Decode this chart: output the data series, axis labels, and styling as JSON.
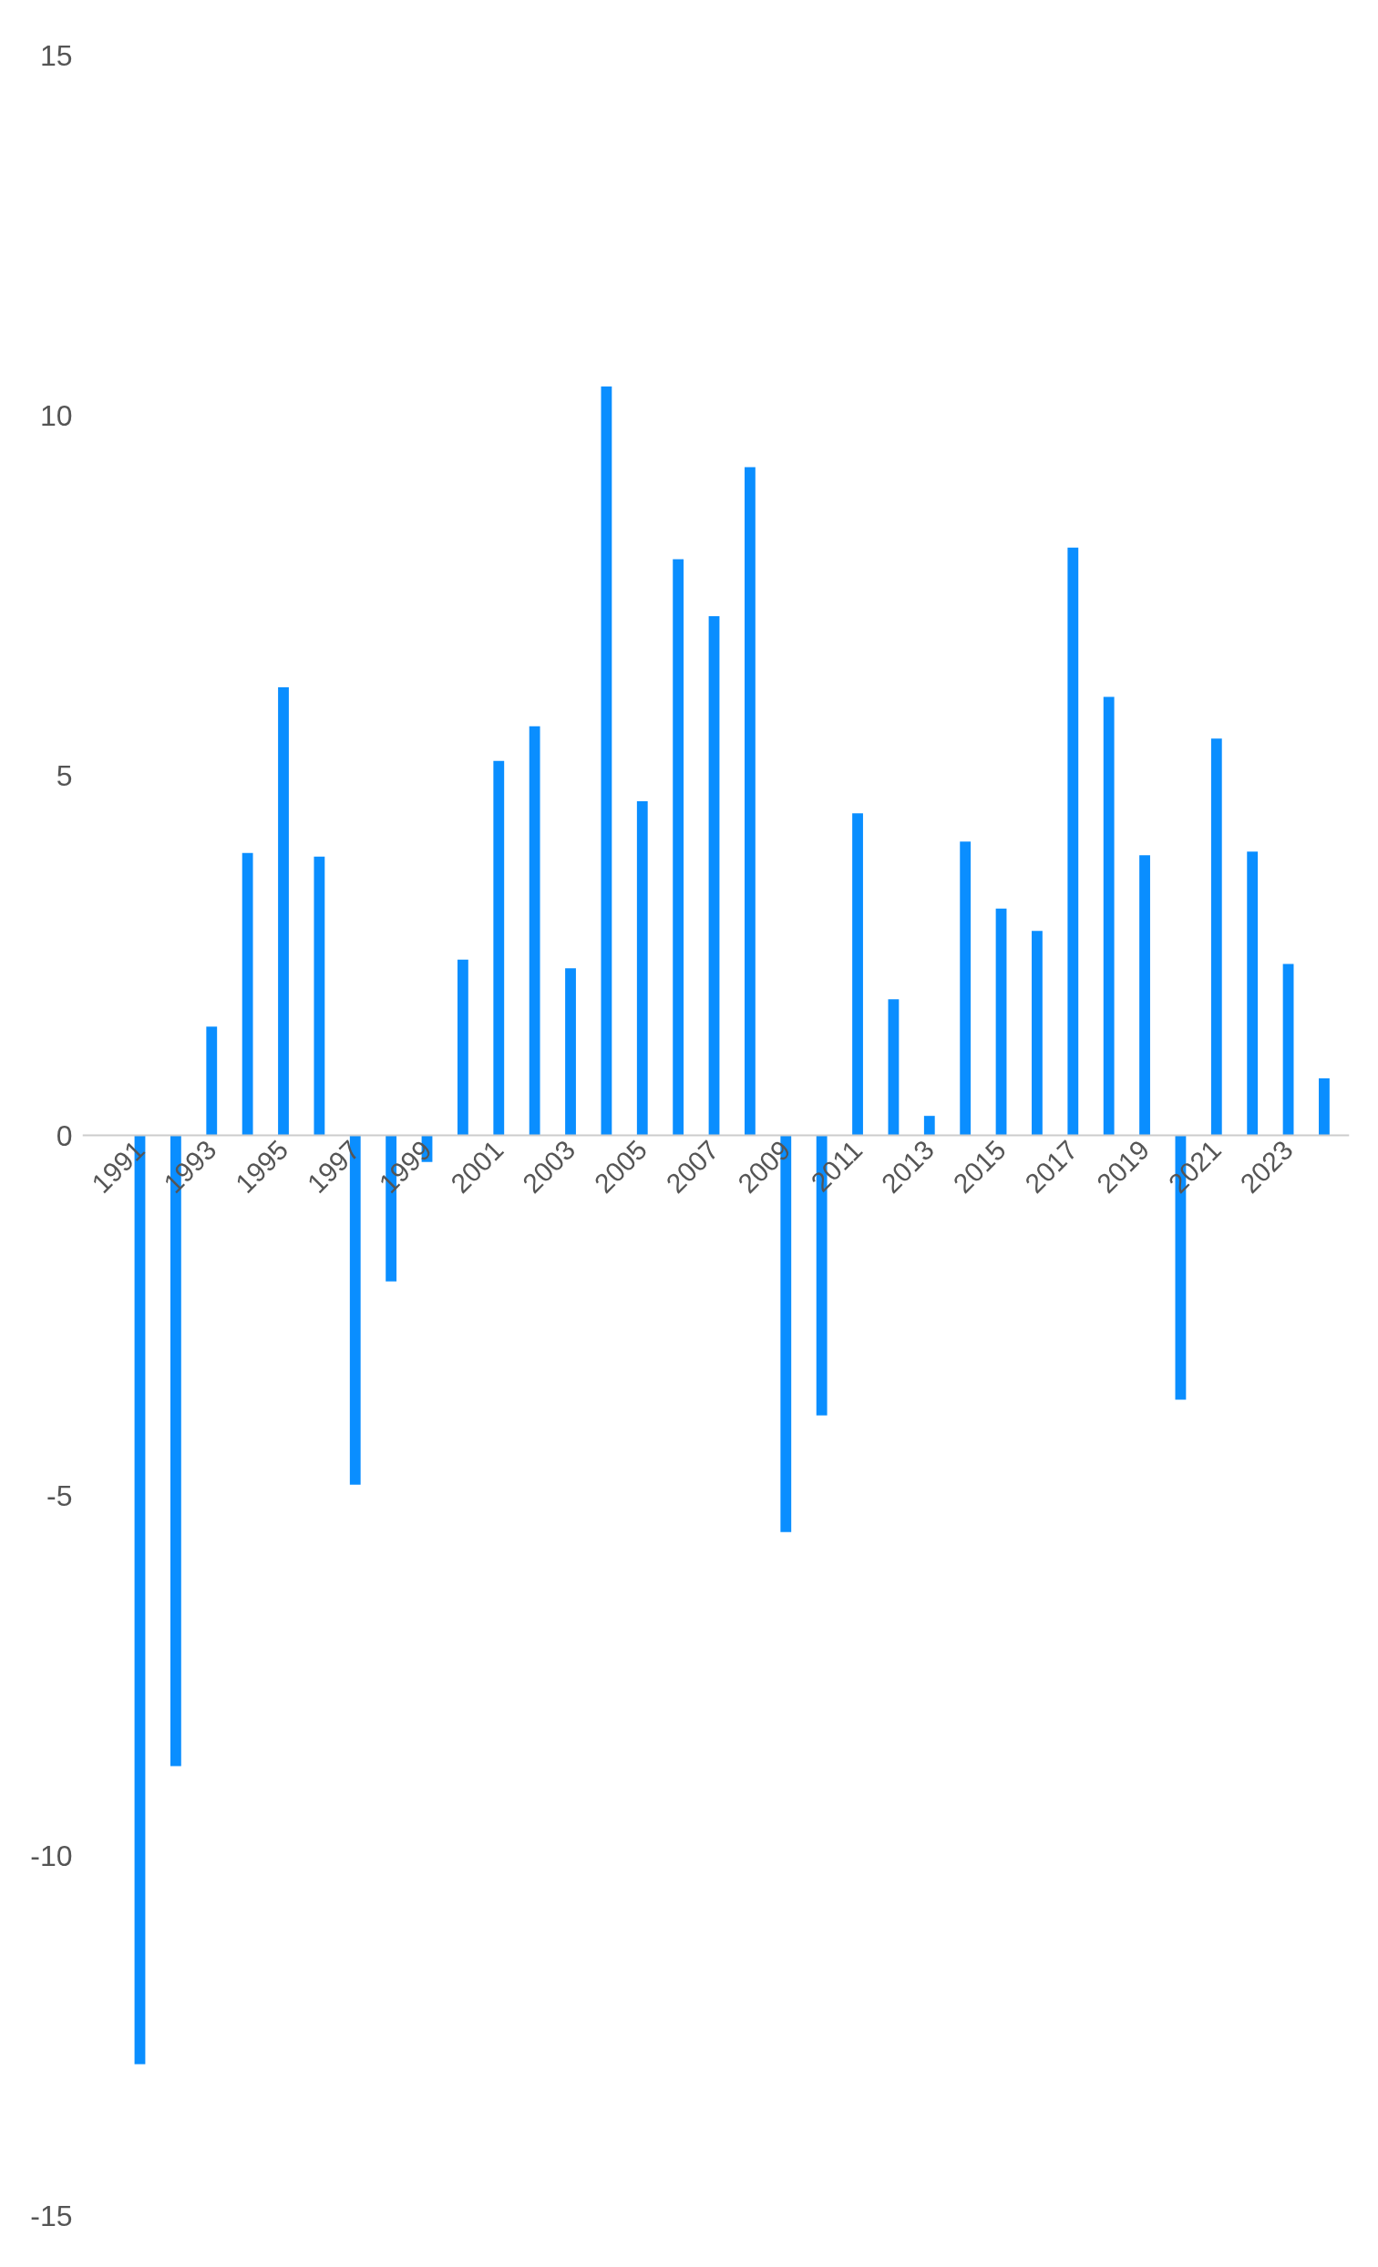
{
  "chart_data": {
    "type": "bar",
    "categories": [
      "1991",
      null,
      "1993",
      null,
      "1995",
      null,
      "1997",
      null,
      "1999",
      null,
      "2001",
      null,
      "2003",
      null,
      "2005",
      null,
      "2007",
      null,
      "2009",
      null,
      "2011",
      null,
      "2013",
      null,
      "2015",
      null,
      "2017",
      null,
      "2019",
      null,
      "2021",
      null,
      "2023",
      null
    ],
    "series": [
      {
        "color": "#0a8eff",
        "values": [
          -12.9,
          -8.76,
          1.51,
          3.92,
          6.22,
          3.87,
          -4.85,
          -2.03,
          -0.37,
          2.44,
          5.2,
          5.68,
          2.32,
          10.4,
          4.64,
          8.0,
          7.21,
          9.28,
          -5.51,
          -3.89,
          4.47,
          1.89,
          0.27,
          4.08,
          3.15,
          2.84,
          8.16,
          6.09,
          3.89,
          -3.67,
          5.51,
          3.94,
          2.38,
          0.79
        ]
      }
    ],
    "ylim": [
      -15,
      15
    ],
    "yticks": [
      -15,
      -10,
      -5,
      0,
      5,
      10,
      15
    ],
    "grid": false
  }
}
